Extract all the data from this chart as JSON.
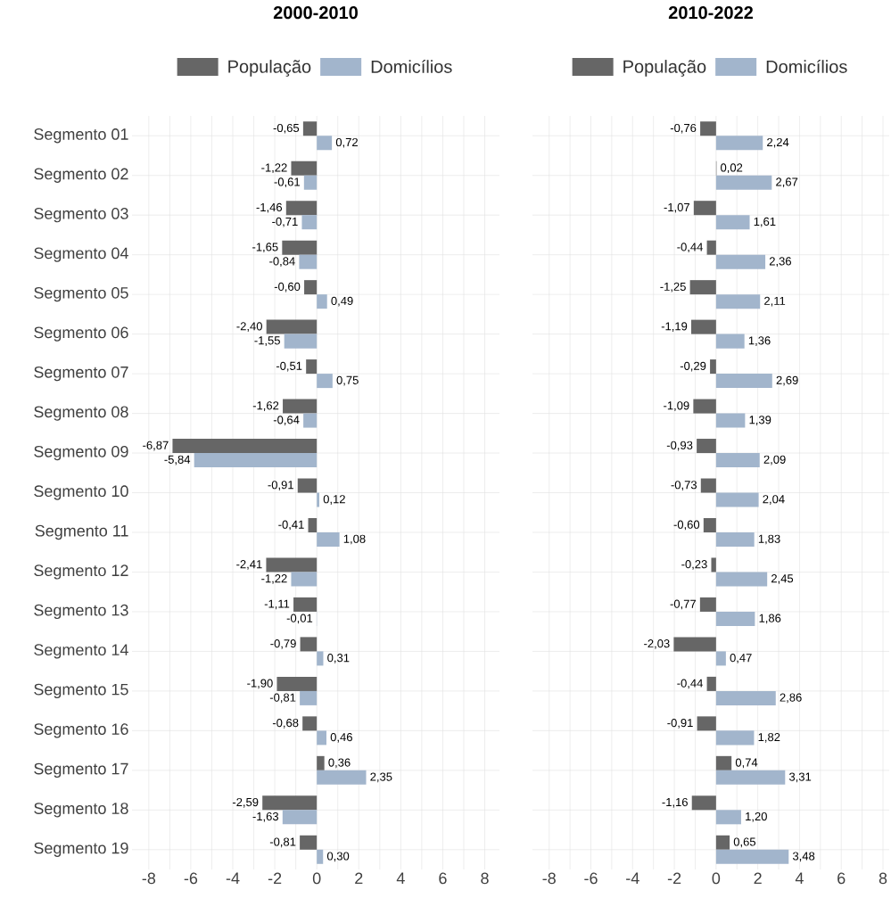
{
  "chart_data": [
    {
      "type": "bar",
      "orientation": "horizontal",
      "title": "2000-2010",
      "categories": [
        "Segmento 01",
        "Segmento 02",
        "Segmento 03",
        "Segmento 04",
        "Segmento 05",
        "Segmento 06",
        "Segmento 07",
        "Segmento 08",
        "Segmento 09",
        "Segmento 10",
        "Segmento 11",
        "Segmento 12",
        "Segmento 13",
        "Segmento 14",
        "Segmento 15",
        "Segmento 16",
        "Segmento 17",
        "Segmento 18",
        "Segmento 19"
      ],
      "series": [
        {
          "name": "População",
          "color": "#666666",
          "values": [
            -0.65,
            -1.22,
            -1.46,
            -1.65,
            -0.6,
            -2.4,
            -0.51,
            -1.62,
            -6.87,
            -0.91,
            -0.41,
            -2.41,
            -1.11,
            -0.79,
            -1.9,
            -0.68,
            0.36,
            -2.59,
            -0.81
          ],
          "value_labels": [
            "-0,65",
            "-1,22",
            "-1,46",
            "-1,65",
            "-0,60",
            "-2,40",
            "-0,51",
            "-1,62",
            "-6,87",
            "-0,91",
            "-0,41",
            "-2,41",
            "-1,11",
            "-0,79",
            "-1,90",
            "-0,68",
            "0,36",
            "-2,59",
            "-0,81"
          ]
        },
        {
          "name": "Domicílios",
          "color": "#a2b5cc",
          "values": [
            0.72,
            -0.61,
            -0.71,
            -0.84,
            0.49,
            -1.55,
            0.75,
            -0.64,
            -5.84,
            0.12,
            1.08,
            -1.22,
            -0.01,
            0.31,
            -0.81,
            0.46,
            2.35,
            -1.63,
            0.3
          ],
          "value_labels": [
            "0,72",
            "-0,61",
            "-0,71",
            "-0,84",
            "0,49",
            "-1,55",
            "0,75",
            "-0,64",
            "-5,84",
            "0,12",
            "1,08",
            "-1,22",
            "-0,01",
            "0,31",
            "-0,81",
            "0,46",
            "2,35",
            "-1,63",
            "0,30"
          ]
        }
      ],
      "xlim": [
        -8.8,
        8.7
      ],
      "xticks": [
        -8,
        -6,
        -4,
        -2,
        0,
        2,
        4,
        6,
        8
      ],
      "grid": true,
      "legend": "top"
    },
    {
      "type": "bar",
      "orientation": "horizontal",
      "title": "2010-2022",
      "categories": [
        null,
        null,
        null,
        null,
        null,
        null,
        null,
        null,
        null,
        null,
        null,
        null,
        null,
        null,
        null,
        null,
        null,
        null,
        null
      ],
      "series": [
        {
          "name": "População",
          "color": "#666666",
          "values": [
            -0.76,
            0.02,
            -1.07,
            -0.44,
            -1.25,
            -1.19,
            -0.29,
            -1.09,
            -0.93,
            -0.73,
            -0.6,
            -0.23,
            -0.77,
            -2.03,
            -0.44,
            -0.91,
            0.74,
            -1.16,
            0.65
          ],
          "value_labels": [
            "-0,76",
            "0,02",
            "-1,07",
            "-0,44",
            "-1,25",
            "-1,19",
            "-0,29",
            "-1,09",
            "-0,93",
            "-0,73",
            "-0,60",
            "-0,23",
            "-0,77",
            "-2,03",
            "-0,44",
            "-0,91",
            "0,74",
            "-1,16",
            "0,65"
          ]
        },
        {
          "name": "Domicílios",
          "color": "#a2b5cc",
          "values": [
            2.24,
            2.67,
            1.61,
            2.36,
            2.11,
            1.36,
            2.69,
            1.39,
            2.09,
            2.04,
            1.83,
            2.45,
            1.86,
            0.47,
            2.86,
            1.82,
            3.31,
            1.2,
            3.48
          ],
          "value_labels": [
            "2,24",
            "2,67",
            "1,61",
            "2,36",
            "2,11",
            "1,36",
            "2,69",
            "1,39",
            "2,09",
            "2,04",
            "1,83",
            "2,45",
            "1,86",
            "0,47",
            "2,86",
            "1,82",
            "3,31",
            "1,20",
            "3,48"
          ]
        }
      ],
      "xlim": [
        -8.8,
        8.3
      ],
      "xticks": [
        -8,
        -6,
        -4,
        -2,
        0,
        2,
        4,
        6,
        8
      ],
      "grid": true,
      "legend": "top",
      "tick_labels": "x"
    }
  ]
}
